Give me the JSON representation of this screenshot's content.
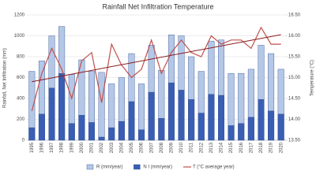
{
  "chart_data": {
    "type": "bar-line",
    "title": "Rainfall Net Infiltration Temperature",
    "y_label": "Rainfall, Net Infiltration (mm)",
    "y2_label": "Temperature (°C)",
    "categories": [
      "1995",
      "1996",
      "1997",
      "1998",
      "1999",
      "2000",
      "2001",
      "2002",
      "2003",
      "2004",
      "2005",
      "2006",
      "2007",
      "2008",
      "2009",
      "2010",
      "2011",
      "2012",
      "2013",
      "2014",
      "2015",
      "2016",
      "2017",
      "2018",
      "2019",
      "2020"
    ],
    "series": [
      {
        "name": "R (mm/year)",
        "type": "bar",
        "color": "#b4c7e7",
        "values": [
          660,
          760,
          1000,
          1090,
          630,
          770,
          660,
          650,
          540,
          600,
          830,
          540,
          910,
          670,
          1010,
          1000,
          800,
          660,
          950,
          960,
          640,
          640,
          680,
          910,
          830,
          680
        ]
      },
      {
        "name": "N I (mm/year)",
        "type": "bar",
        "color": "#3a5eb4",
        "values": [
          120,
          250,
          500,
          640,
          160,
          240,
          170,
          30,
          120,
          180,
          370,
          100,
          460,
          210,
          550,
          480,
          390,
          260,
          440,
          430,
          140,
          160,
          220,
          390,
          280,
          250
        ]
      },
      {
        "name": "T (°C average year)",
        "type": "line",
        "axis": "y2",
        "color": "#c0504d",
        "values": [
          14.2,
          15.1,
          15.7,
          15.2,
          14.5,
          15.4,
          15.6,
          14.4,
          15.8,
          15.3,
          15.0,
          15.2,
          15.9,
          15.1,
          15.6,
          15.9,
          15.6,
          15.5,
          16.0,
          15.8,
          15.9,
          15.9,
          15.7,
          16.2,
          15.8,
          15.8
        ]
      }
    ],
    "ylim": [
      0,
      1200
    ],
    "yticks": [
      0,
      200,
      400,
      600,
      800,
      1000,
      1200
    ],
    "y2lim": [
      13.5,
      16.5
    ],
    "y2ticks": [
      {
        "value": 13.5,
        "label": "13.50"
      },
      {
        "value": 14,
        "label": "14.00"
      },
      {
        "value": 14.5,
        "label": "14.50"
      },
      {
        "value": 15,
        "label": "15.00"
      },
      {
        "value": 15.5,
        "label": "15.50"
      },
      {
        "value": 16,
        "label": "16.00"
      },
      {
        "value": 16.5,
        "label": "16.50"
      }
    ],
    "grid": true,
    "legend": "bottom",
    "trend_color": "#8b1a1a"
  }
}
